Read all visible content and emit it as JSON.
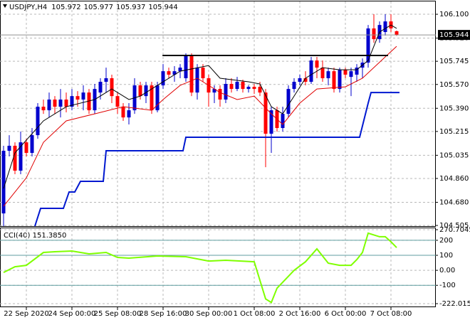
{
  "chart_data": [
    {
      "type": "candlestick",
      "title": "USDJPY,H4",
      "xlim": [
        -0.625,
        75.875
      ],
      "xticks": [
        {
          "value": 4,
          "label": "22 Sep 2020"
        },
        {
          "value": 12,
          "label": "24 Sep 00:00"
        },
        {
          "value": 20,
          "label": "25 Sep 08:00"
        },
        {
          "value": 28,
          "label": "28 Sep 16:00"
        },
        {
          "value": 36,
          "label": "30 Sep 00:00"
        },
        {
          "value": 44,
          "label": "1 Oct 08:00"
        },
        {
          "value": 52,
          "label": "2 Oct 16:00"
        },
        {
          "value": 60,
          "label": "6 Oct 00:00"
        },
        {
          "value": 68,
          "label": "7 Oct 08:00"
        }
      ],
      "ylim": [
        104.5,
        106.197
      ],
      "yticks": [
        {
          "value": 106.1,
          "label": "106.100"
        },
        {
          "value": 105.92,
          "label": "105.920"
        },
        105.745,
        {
          "value": 105.57,
          "label": "105.570"
        },
        {
          "value": 105.39,
          "label": "105.390"
        },
        105.215,
        105.035,
        {
          "value": 104.86,
          "label": "104.860"
        },
        {
          "value": 104.68,
          "label": "104.680"
        },
        104.505
      ],
      "grid": true,
      "up_color": "#0000cd",
      "down_color": "#ff0000",
      "candles": {
        "open": [
          104.596,
          105.069,
          105.107,
          104.919,
          105.133,
          105.053,
          105.187,
          105.402,
          105.375,
          105.456,
          105.402,
          105.456,
          105.402,
          105.482,
          105.456,
          105.509,
          105.375,
          105.509,
          105.59,
          105.617,
          105.482,
          105.402,
          105.321,
          105.375,
          105.563,
          105.482,
          105.563,
          105.375,
          105.563,
          105.67,
          105.644,
          105.67,
          105.617,
          105.789,
          105.509,
          105.697,
          105.617,
          105.509,
          105.536,
          105.456,
          105.574,
          105.536,
          105.59,
          105.536,
          105.552,
          105.552,
          105.509,
          105.198,
          105.375,
          105.241,
          105.348,
          105.536,
          105.59,
          105.617,
          105.59,
          105.751,
          105.697,
          105.617,
          105.67,
          105.536,
          105.681,
          105.627,
          105.644,
          105.697,
          105.735,
          105.993,
          105.912,
          105.966,
          106.046,
          105.972
        ],
        "high": [
          105.107,
          105.187,
          105.133,
          105.214,
          105.16,
          105.241,
          105.429,
          105.456,
          105.509,
          105.482,
          105.536,
          105.509,
          105.536,
          105.52,
          105.563,
          105.536,
          105.574,
          105.617,
          105.697,
          105.644,
          105.509,
          105.429,
          105.429,
          105.617,
          105.59,
          105.59,
          105.59,
          105.59,
          105.724,
          105.697,
          105.708,
          105.724,
          105.805,
          105.805,
          105.724,
          105.724,
          105.644,
          105.563,
          105.563,
          105.617,
          105.617,
          105.627,
          105.606,
          105.563,
          105.574,
          105.59,
          105.536,
          105.402,
          105.402,
          105.402,
          105.563,
          105.617,
          105.644,
          105.67,
          105.778,
          105.778,
          105.751,
          105.697,
          105.697,
          105.697,
          105.697,
          105.697,
          105.724,
          105.767,
          106.019,
          106.1,
          106.046,
          106.1,
          106.1,
          105.977
        ],
        "low": [
          104.5,
          105.026,
          104.892,
          104.892,
          105.026,
          105.026,
          105.16,
          105.348,
          105.321,
          105.348,
          105.321,
          105.359,
          105.375,
          105.402,
          105.375,
          105.348,
          105.348,
          105.456,
          105.509,
          105.429,
          105.348,
          105.295,
          105.268,
          105.348,
          105.456,
          105.429,
          105.348,
          105.359,
          105.536,
          105.617,
          105.59,
          105.617,
          105.59,
          105.482,
          105.456,
          105.59,
          105.402,
          105.429,
          105.402,
          105.429,
          105.509,
          105.52,
          105.509,
          105.509,
          105.499,
          105.482,
          104.945,
          105.053,
          105.214,
          105.214,
          105.321,
          105.509,
          105.563,
          105.563,
          105.574,
          105.617,
          105.59,
          105.563,
          105.509,
          105.509,
          105.617,
          105.482,
          105.59,
          105.617,
          105.697,
          105.885,
          105.885,
          105.939,
          105.966,
          105.937
        ],
        "close": [
          105.069,
          105.107,
          104.919,
          105.133,
          105.053,
          105.187,
          105.402,
          105.375,
          105.456,
          105.402,
          105.456,
          105.402,
          105.482,
          105.456,
          105.509,
          105.375,
          105.536,
          105.59,
          105.617,
          105.482,
          105.402,
          105.321,
          105.375,
          105.563,
          105.482,
          105.563,
          105.375,
          105.563,
          105.67,
          105.644,
          105.67,
          105.697,
          105.789,
          105.509,
          105.697,
          105.617,
          105.509,
          105.536,
          105.456,
          105.574,
          105.536,
          105.59,
          105.536,
          105.552,
          105.536,
          105.509,
          105.198,
          105.375,
          105.241,
          105.348,
          105.536,
          105.59,
          105.617,
          105.59,
          105.751,
          105.697,
          105.617,
          105.67,
          105.536,
          105.681,
          105.644,
          105.67,
          105.697,
          105.735,
          105.993,
          105.912,
          106.019,
          106.046,
          105.993,
          105.944
        ]
      },
      "lines": [
        {
          "color": "#000000",
          "width": 1,
          "x": [
            0,
            2,
            7,
            11,
            16,
            19,
            22,
            24,
            27,
            31,
            36,
            38,
            43,
            45,
            47,
            49,
            51,
            53,
            56,
            59,
            62,
            64,
            66,
            68,
            69
          ],
          "values": [
            104.784,
            105.053,
            105.295,
            105.402,
            105.456,
            105.536,
            105.456,
            105.482,
            105.563,
            105.67,
            105.713,
            105.617,
            105.59,
            105.574,
            105.402,
            105.348,
            105.482,
            105.617,
            105.697,
            105.681,
            105.681,
            105.751,
            105.966,
            106.019,
            105.993
          ]
        },
        {
          "color": "#e00000",
          "width": 1,
          "x": [
            0,
            4,
            7,
            11,
            16,
            21,
            26,
            28,
            31,
            34,
            38,
            41,
            44,
            47,
            49,
            52,
            55,
            60,
            63,
            67,
            69
          ],
          "values": [
            104.65,
            104.865,
            105.133,
            105.295,
            105.348,
            105.402,
            105.375,
            105.456,
            105.563,
            105.617,
            105.509,
            105.456,
            105.482,
            105.348,
            105.268,
            105.429,
            105.536,
            105.552,
            105.617,
            105.778,
            105.858
          ]
        },
        {
          "color": "#0018d0",
          "width": 2,
          "x": [
            5.5,
            6.5,
            10.5,
            11.5,
            12.5,
            13.5,
            17.5,
            18,
            31.5,
            32,
            62.5,
            64,
            64.5,
            69.5
          ],
          "values": [
            104.5,
            104.634,
            104.634,
            104.758,
            104.758,
            104.838,
            104.838,
            105.069,
            105.069,
            105.171,
            105.171,
            105.429,
            105.509,
            105.509
          ]
        },
        {
          "color": "#000000",
          "width": 2,
          "x": [
            27.9,
            67.5
          ],
          "values": [
            105.789,
            105.789
          ]
        }
      ]
    },
    {
      "type": "line",
      "title": "CCI(40) 151.3850",
      "ylim": [
        -222.0152,
        270.7045
      ],
      "yticks": [
        270.7045,
        200,
        100,
        {
          "value": 0,
          "label": "0.00"
        },
        -100,
        -222.0152
      ],
      "grid": true,
      "levels": [
        200,
        100,
        -100
      ],
      "level_color": "#5f9ea0",
      "lines": [
        {
          "color": "#7fff00",
          "width": 2,
          "x": [
            0,
            2,
            4,
            7,
            9,
            12,
            15,
            18,
            20,
            22,
            27,
            32,
            36,
            39,
            44,
            46,
            47,
            48,
            51,
            53,
            55,
            57,
            59,
            61,
            62,
            63,
            64,
            66,
            67,
            68,
            69
          ],
          "values": [
            -14.3,
            23.8,
            33.3,
            119,
            123.8,
            128.6,
            109.5,
            119,
            85.7,
            81,
            95.2,
            90.5,
            61.9,
            66.7,
            57.1,
            -190.5,
            -214.3,
            -119,
            0,
            57.1,
            142.9,
            47.6,
            33.3,
            33.3,
            71.4,
            119,
            247.6,
            223.8,
            223.8,
            190.5,
            151.385
          ]
        }
      ]
    }
  ]
}
